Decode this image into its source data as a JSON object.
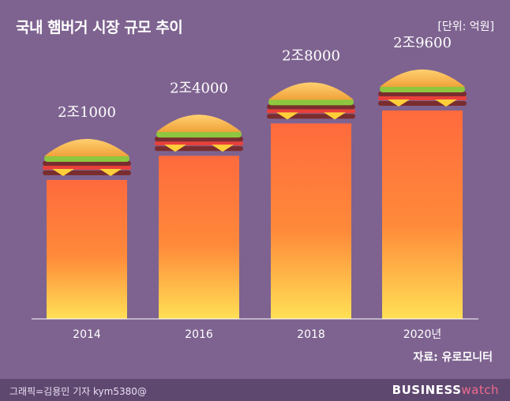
{
  "chart_data": {
    "type": "bar",
    "title": "국내 햄버거 시장 규모 추이",
    "unit_label": "[단위: 억원]",
    "categories": [
      "2014",
      "2016",
      "2018",
      "2020년"
    ],
    "values": [
      21000,
      24000,
      28000,
      29600
    ],
    "value_labels": [
      "2조1000",
      "2조4000",
      "2조8000",
      "2조9600"
    ],
    "source": "자료: 유로모니터",
    "colors": {
      "bar_top": "#ff6a3d",
      "bar_bottom": "#ffe055",
      "background": "#7e6390"
    }
  },
  "footer": {
    "credit": "그래픽=김용민 기자 kym5380@",
    "brand_bold": "BUSINESS",
    "brand_light": "watch"
  }
}
